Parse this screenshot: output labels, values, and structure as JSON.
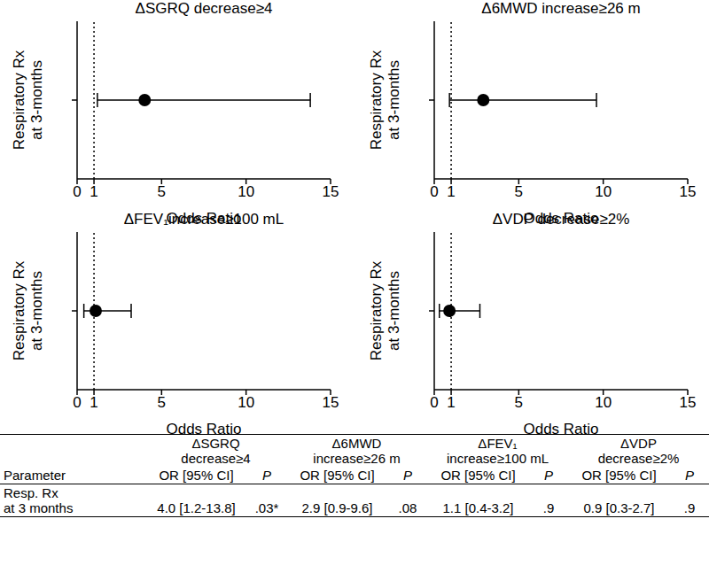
{
  "chart_data": [
    {
      "type": "scatter",
      "title": "ΔSGRQ decrease≥4",
      "x_label": "Odds Ratio",
      "y_label": "Respiratory Rx at 3-months",
      "categories": [
        null
      ],
      "x": [
        4.0
      ],
      "ci_low": [
        1.2
      ],
      "ci_high": [
        13.8
      ],
      "xlim": [
        0,
        15
      ],
      "xticks": [
        0,
        1,
        5,
        10,
        15
      ],
      "reference_x": 1,
      "tick_labels": "x",
      "color": "#000000",
      "marker": "circle"
    },
    {
      "type": "scatter",
      "title": "Δ6MWD increase≥26 m",
      "x_label": "Odds Ratio",
      "y_label": "Respiratory Rx at 3-months",
      "categories": [
        null
      ],
      "x": [
        2.9
      ],
      "ci_low": [
        0.9
      ],
      "ci_high": [
        9.6
      ],
      "xlim": [
        0,
        15
      ],
      "xticks": [
        0,
        1,
        5,
        10,
        15
      ],
      "reference_x": 1,
      "tick_labels": "x",
      "color": "#000000",
      "marker": "circle"
    },
    {
      "type": "scatter",
      "title": "ΔFEV₁increase≥100 mL",
      "x_label": "Odds Ratio",
      "y_label": "Respiratory Rx at 3-months",
      "categories": [
        null
      ],
      "x": [
        1.1
      ],
      "ci_low": [
        0.4
      ],
      "ci_high": [
        3.2
      ],
      "xlim": [
        0,
        15
      ],
      "xticks": [
        0,
        1,
        5,
        10,
        15
      ],
      "reference_x": 1,
      "tick_labels": "x",
      "color": "#000000",
      "marker": "circle"
    },
    {
      "type": "scatter",
      "title": "ΔVDP decrease≥2%",
      "x_label": "Odds Ratio",
      "y_label": "Respiratory Rx at 3-months",
      "categories": [
        null
      ],
      "x": [
        0.9
      ],
      "ci_low": [
        0.3
      ],
      "ci_high": [
        2.7
      ],
      "xlim": [
        0,
        15
      ],
      "xticks": [
        0,
        1,
        5,
        10,
        15
      ],
      "reference_x": 1,
      "tick_labels": "x",
      "color": "#000000",
      "marker": "circle"
    }
  ],
  "table": {
    "group_headers": [
      [
        "ΔSGRQ",
        "decrease≥4"
      ],
      [
        "Δ6MWD",
        "increase≥26 m"
      ],
      [
        "ΔFEV₁",
        "increase≥100 mL"
      ],
      [
        "ΔVDP",
        "decrease≥2%"
      ]
    ],
    "columns": [
      "Parameter",
      "OR [95% CI]",
      "P",
      "OR [95% CI]",
      "P",
      "OR [95% CI]",
      "P",
      "OR [95% CI]",
      "P"
    ],
    "rows": [
      {
        "label": [
          "Resp. Rx",
          "at 3 months"
        ],
        "cells": [
          "4.0 [1.2-13.8]",
          ".03*",
          "2.9 [0.9-9.6]",
          ".08",
          "1.1 [0.4-3.2]",
          ".9",
          "0.9 [0.3-2.7]",
          ".9"
        ]
      }
    ]
  }
}
